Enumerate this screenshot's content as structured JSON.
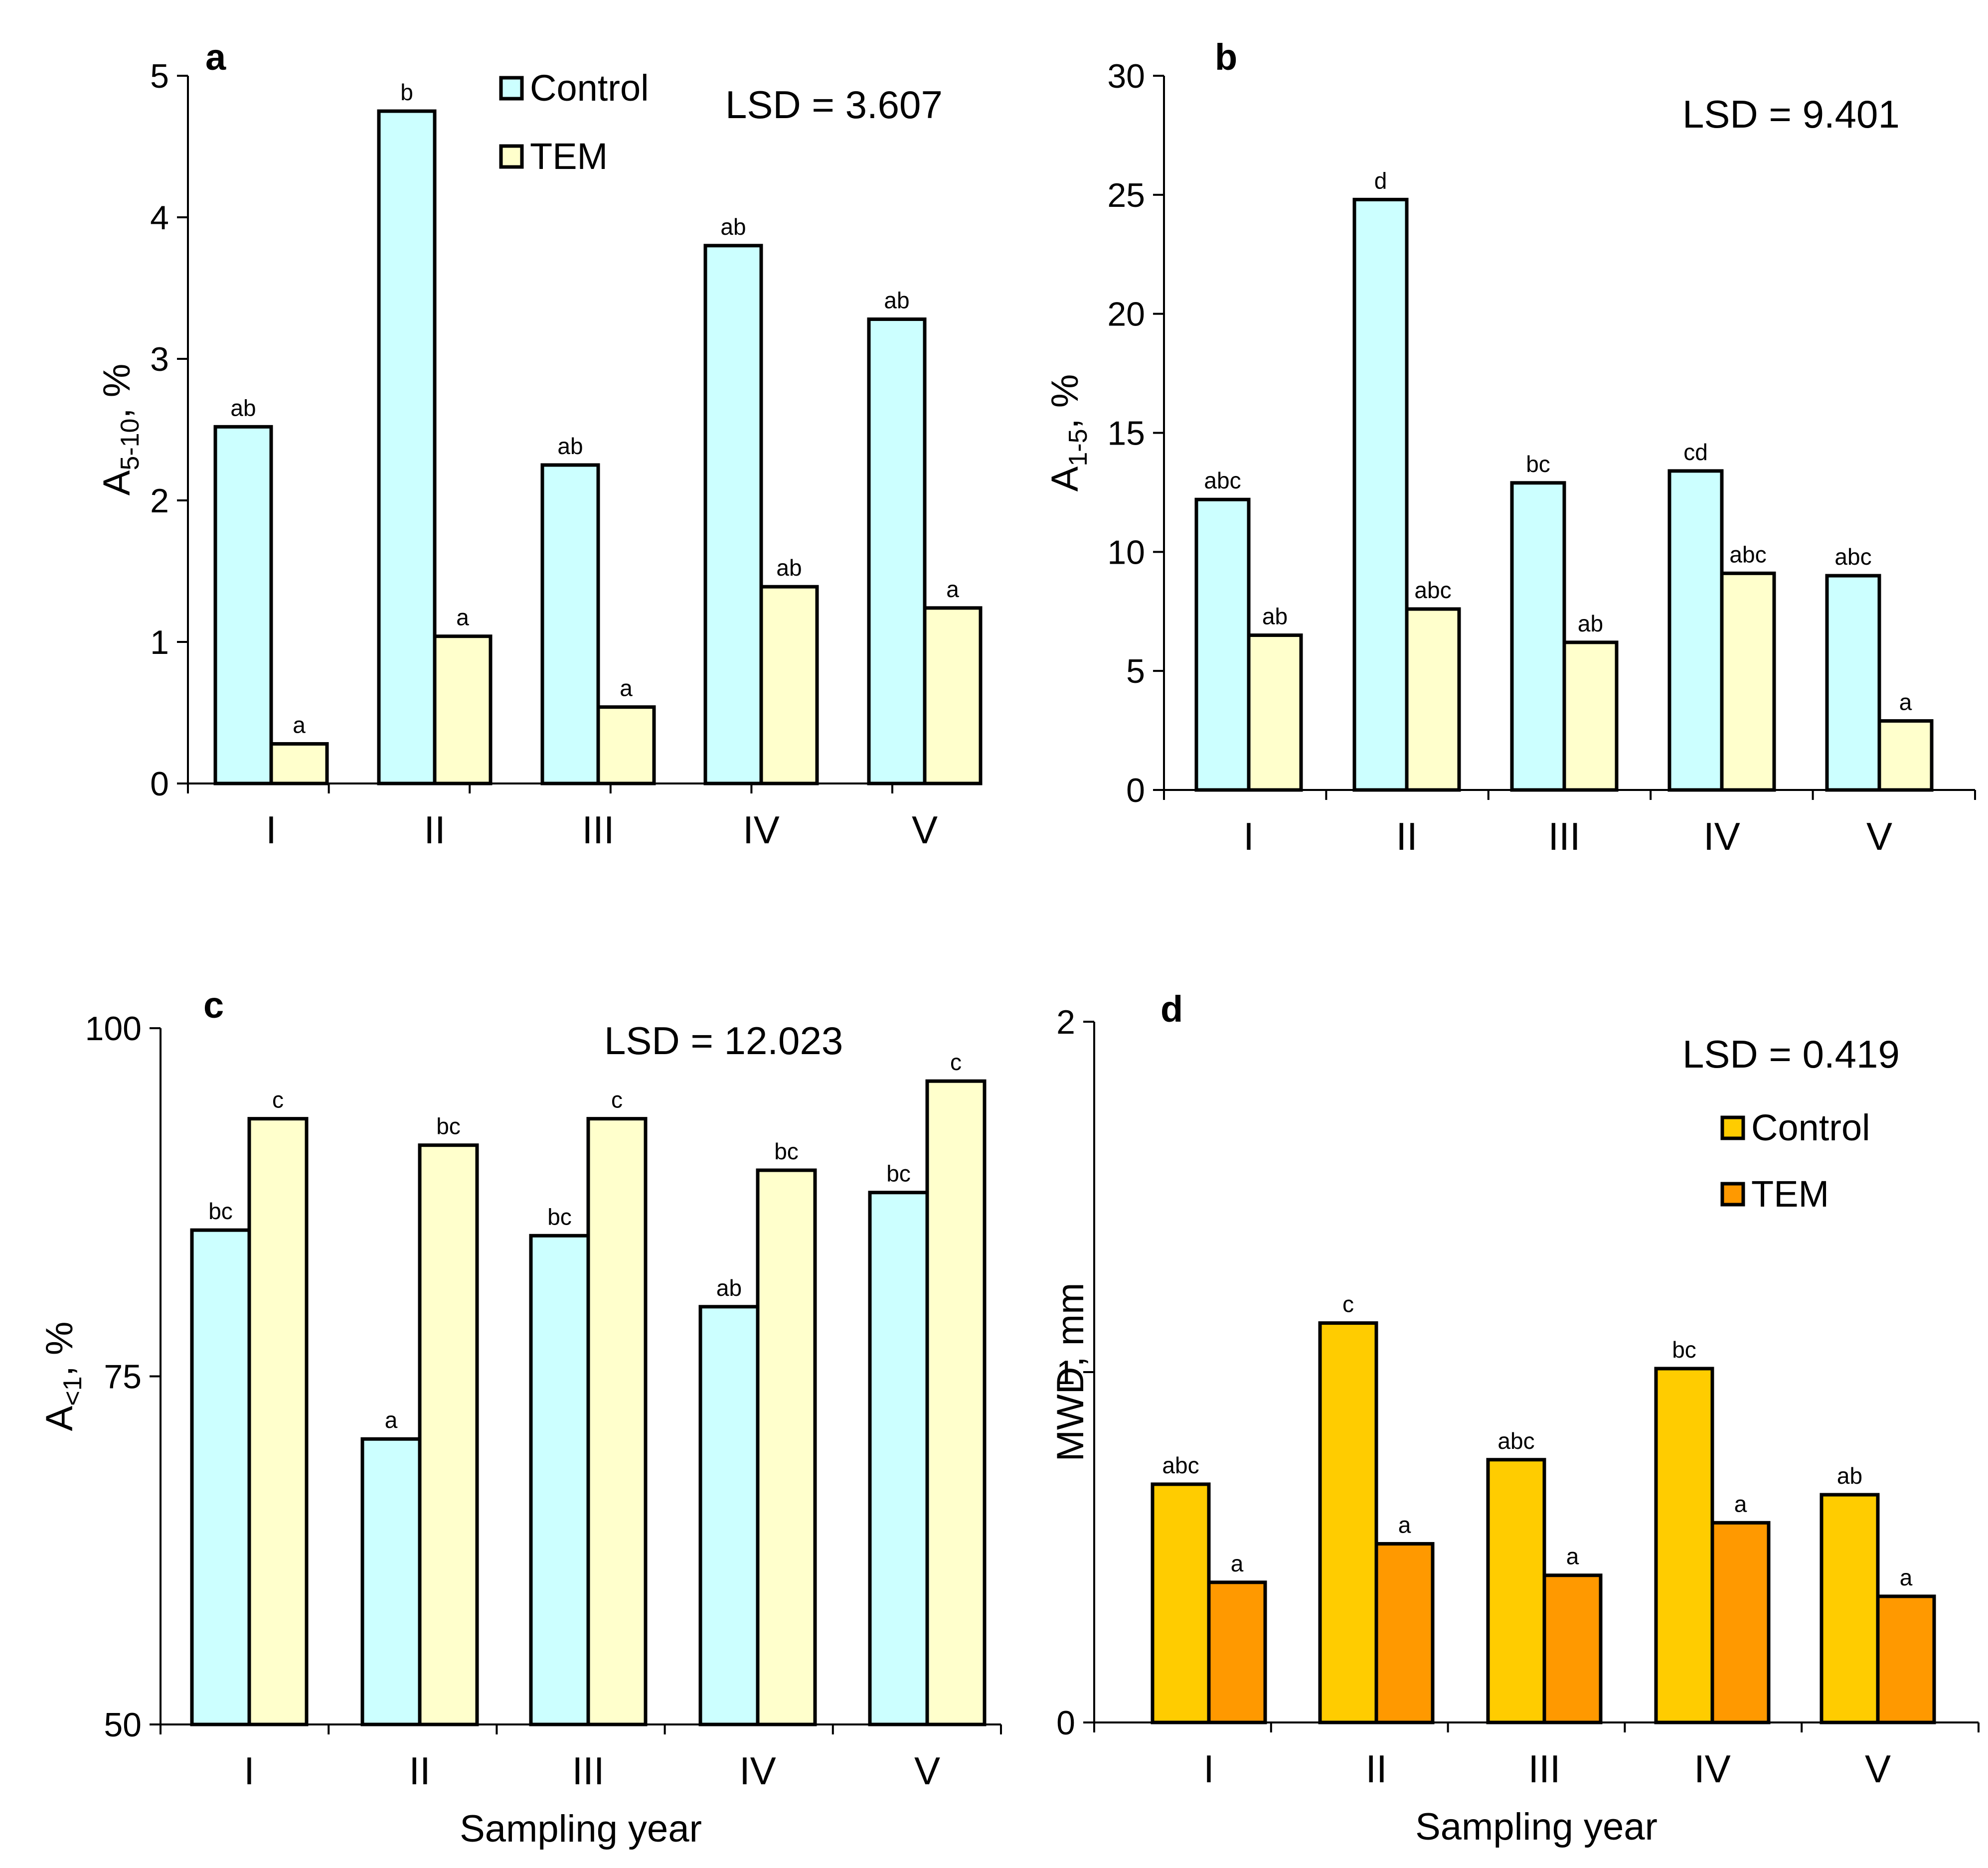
{
  "figure": {
    "x_axis_title": "Sampling year"
  },
  "colors": {
    "control_light": "#ccffff",
    "tem_light": "#ffffcc",
    "control_dark": "#ffcc00",
    "tem_dark": "#ff9900",
    "stroke": "#000000"
  },
  "chart_data": [
    {
      "id": "a",
      "type": "bar",
      "panel_label": "a",
      "ylabel": "A",
      "ylabel_sub": "5-10",
      "ylabel_suffix": ", %",
      "ylim": [
        0,
        5
      ],
      "yticks": [
        0,
        1,
        2,
        3,
        4,
        5
      ],
      "categories": [
        "I",
        "II",
        "III",
        "IV",
        "V"
      ],
      "series": [
        {
          "name": "Control",
          "values": [
            2.52,
            4.75,
            2.25,
            3.8,
            3.28
          ],
          "letters": [
            "ab",
            "b",
            "ab",
            "ab",
            "ab"
          ]
        },
        {
          "name": "TEM",
          "values": [
            0.28,
            1.04,
            0.54,
            1.39,
            1.24
          ],
          "letters": [
            "a",
            "a",
            "a",
            "ab",
            "a"
          ]
        }
      ],
      "lsd": "LSD = 3.607",
      "legend": [
        "Control",
        "TEM"
      ],
      "legend_position": "top-center"
    },
    {
      "id": "b",
      "type": "bar",
      "panel_label": "b",
      "ylabel": "A",
      "ylabel_sub": "1-5",
      "ylabel_suffix": ", %",
      "ylim": [
        0,
        30
      ],
      "yticks": [
        0,
        5,
        10,
        15,
        20,
        25,
        30
      ],
      "categories": [
        "I",
        "II",
        "III",
        "IV",
        "V"
      ],
      "series": [
        {
          "name": "Control",
          "values": [
            12.2,
            24.8,
            12.9,
            13.4,
            9.0
          ],
          "letters": [
            "abc",
            "d",
            "bc",
            "cd",
            "abc"
          ]
        },
        {
          "name": "TEM",
          "values": [
            6.5,
            7.6,
            6.2,
            9.1,
            2.9
          ],
          "letters": [
            "ab",
            "abc",
            "ab",
            "abc",
            "a"
          ]
        }
      ],
      "lsd": "LSD = 9.401"
    },
    {
      "id": "c",
      "type": "bar",
      "panel_label": "c",
      "ylabel": "A",
      "ylabel_sub": "<1",
      "ylabel_suffix": ", %",
      "ylim": [
        50,
        100
      ],
      "yticks": [
        50,
        75,
        100
      ],
      "categories": [
        "I",
        "II",
        "III",
        "IV",
        "V"
      ],
      "xlabel": "Sampling year",
      "series": [
        {
          "name": "Control",
          "values": [
            85.5,
            70.5,
            85.1,
            80.0,
            88.2
          ],
          "letters": [
            "bc",
            "a",
            "bc",
            "ab",
            "bc"
          ]
        },
        {
          "name": "TEM",
          "values": [
            93.5,
            91.6,
            93.5,
            89.8,
            96.2
          ],
          "letters": [
            "c",
            "bc",
            "c",
            "bc",
            "c"
          ]
        }
      ],
      "lsd": "LSD = 12.023"
    },
    {
      "id": "d",
      "type": "bar",
      "panel_label": "d",
      "ylabel": "MWD, mm",
      "ylim": [
        0,
        2
      ],
      "yticks": [
        0,
        1,
        2
      ],
      "categories": [
        "I",
        "II",
        "III",
        "IV",
        "V"
      ],
      "xlabel": "Sampling year",
      "series": [
        {
          "name": "Control",
          "values": [
            0.68,
            1.14,
            0.75,
            1.01,
            0.65
          ],
          "letters": [
            "abc",
            "c",
            "abc",
            "bc",
            "ab"
          ]
        },
        {
          "name": "TEM",
          "values": [
            0.4,
            0.51,
            0.42,
            0.57,
            0.36
          ],
          "letters": [
            "a",
            "a",
            "a",
            "a",
            "a"
          ]
        }
      ],
      "lsd": "LSD = 0.419",
      "legend": [
        "Control",
        "TEM"
      ],
      "legend_position": "right"
    }
  ]
}
